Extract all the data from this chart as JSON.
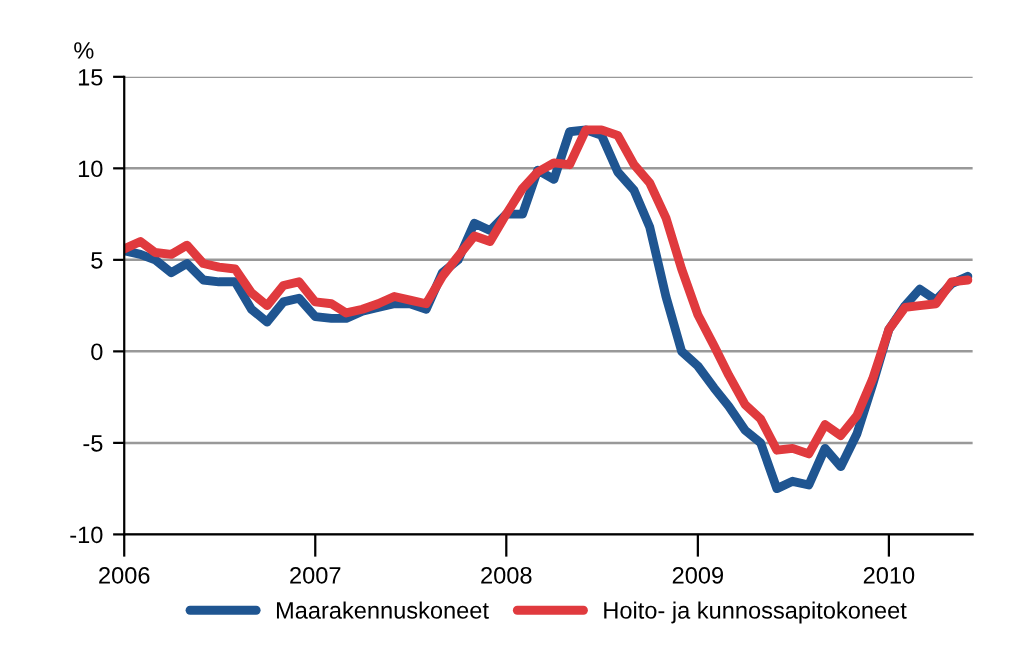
{
  "chart_data": {
    "type": "line",
    "ylabel": "%",
    "x": [
      "2006-01",
      "2006-02",
      "2006-03",
      "2006-04",
      "2006-05",
      "2006-06",
      "2006-07",
      "2006-08",
      "2006-09",
      "2006-10",
      "2006-11",
      "2006-12",
      "2007-01",
      "2007-02",
      "2007-03",
      "2007-04",
      "2007-05",
      "2007-06",
      "2007-07",
      "2007-08",
      "2007-09",
      "2007-10",
      "2007-11",
      "2007-12",
      "2008-01",
      "2008-02",
      "2008-03",
      "2008-04",
      "2008-05",
      "2008-06",
      "2008-07",
      "2008-08",
      "2008-09",
      "2008-10",
      "2008-11",
      "2008-12",
      "2009-01",
      "2009-02",
      "2009-03",
      "2009-04",
      "2009-05",
      "2009-06",
      "2009-07",
      "2009-08",
      "2009-09",
      "2009-10",
      "2009-11",
      "2009-12",
      "2010-01",
      "2010-02",
      "2010-03",
      "2010-04",
      "2010-05",
      "2010-06"
    ],
    "series": [
      {
        "name": "Maarakennuskoneet",
        "color": "#1f5591",
        "values": [
          5.5,
          5.3,
          5.0,
          4.3,
          4.8,
          3.9,
          3.8,
          3.8,
          2.3,
          1.6,
          2.7,
          2.9,
          1.9,
          1.8,
          1.8,
          2.2,
          2.4,
          2.6,
          2.6,
          2.3,
          4.3,
          5.0,
          7.0,
          6.6,
          7.5,
          7.5,
          9.9,
          9.4,
          12.0,
          12.1,
          11.8,
          9.8,
          8.8,
          6.8,
          3.0,
          0.0,
          -0.8,
          -2.0,
          -3.0,
          -4.3,
          -5.0,
          -7.5,
          -7.1,
          -7.3,
          -5.3,
          -6.3,
          -4.5,
          -1.8,
          1.2,
          2.5,
          3.4,
          2.8,
          3.7,
          4.1
        ]
      },
      {
        "name": "Hoito- ja kunnossapitokoneet",
        "color": "#e03a3e",
        "values": [
          5.6,
          6.0,
          5.4,
          5.3,
          5.8,
          4.8,
          4.6,
          4.5,
          3.2,
          2.5,
          3.6,
          3.8,
          2.7,
          2.6,
          2.1,
          2.3,
          2.6,
          3.0,
          2.8,
          2.6,
          4.1,
          5.2,
          6.3,
          6.0,
          7.5,
          8.9,
          9.8,
          10.3,
          10.2,
          12.1,
          12.1,
          11.8,
          10.2,
          9.2,
          7.3,
          4.5,
          2.0,
          0.3,
          -1.3,
          -2.9,
          -3.7,
          -5.4,
          -5.3,
          -5.6,
          -4.0,
          -4.6,
          -3.5,
          -1.5,
          1.2,
          2.4,
          2.5,
          2.6,
          3.8,
          3.9
        ]
      }
    ],
    "xlim": [
      "2006-01",
      "2010-06-10"
    ],
    "xticks": [
      {
        "value": "2006-01",
        "label": "2006"
      },
      {
        "value": "2007-01",
        "label": "2007"
      },
      {
        "value": "2008-01",
        "label": "2008"
      },
      {
        "value": "2009-01",
        "label": "2009"
      },
      {
        "value": "2010-01",
        "label": "2010"
      }
    ],
    "ylim": [
      -10,
      15
    ],
    "yticks": [
      -10,
      -5,
      0,
      5,
      10,
      15
    ],
    "grid": "y",
    "legend": "bottom",
    "marker": "none",
    "line_style": "solid"
  }
}
